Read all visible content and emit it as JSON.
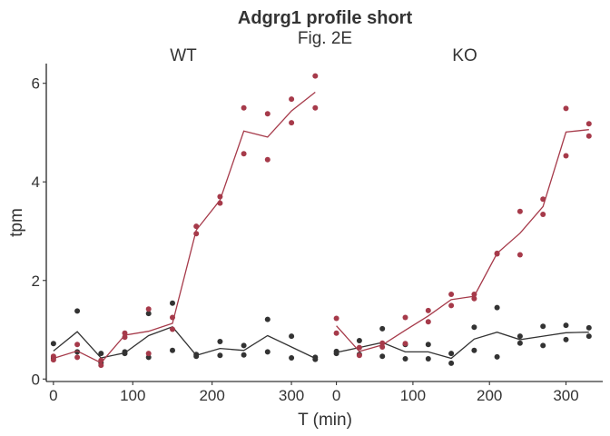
{
  "chart_data": {
    "type": "scatter",
    "title": "Adgrg1 profile short",
    "subtitle": "Fig. 2E",
    "xlabel": "T (min)",
    "ylabel": "tpm",
    "xlim": [
      -9,
      348
    ],
    "ylim": [
      -0.05,
      6.4
    ],
    "x_ticks": [
      0,
      100,
      200,
      300
    ],
    "y_ticks": [
      0,
      2,
      4,
      6
    ],
    "grid": false,
    "legend": "none",
    "colors": {
      "group_a": "#333333",
      "group_b": "#A63A4A"
    },
    "panels": [
      {
        "label": "WT",
        "series": [
          {
            "color": "#333333",
            "points": [
              [
                0,
                0.72
              ],
              [
                0,
                0.43
              ],
              [
                30,
                1.38
              ],
              [
                30,
                0.55
              ],
              [
                60,
                0.52
              ],
              [
                60,
                0.33
              ],
              [
                90,
                0.55
              ],
              [
                90,
                0.52
              ],
              [
                120,
                1.33
              ],
              [
                120,
                0.44
              ],
              [
                150,
                1.54
              ],
              [
                150,
                0.58
              ],
              [
                180,
                0.5
              ],
              [
                180,
                0.46
              ],
              [
                210,
                0.76
              ],
              [
                210,
                0.48
              ],
              [
                240,
                0.68
              ],
              [
                240,
                0.49
              ],
              [
                270,
                1.21
              ],
              [
                270,
                0.55
              ],
              [
                300,
                0.87
              ],
              [
                300,
                0.43
              ],
              [
                330,
                0.44
              ],
              [
                330,
                0.4
              ]
            ],
            "line": [
              [
                0,
                0.57
              ],
              [
                30,
                0.96
              ],
              [
                60,
                0.43
              ],
              [
                90,
                0.53
              ],
              [
                120,
                0.88
              ],
              [
                150,
                1.06
              ],
              [
                180,
                0.48
              ],
              [
                210,
                0.62
              ],
              [
                240,
                0.58
              ],
              [
                270,
                0.88
              ],
              [
                300,
                0.65
              ],
              [
                330,
                0.42
              ]
            ]
          },
          {
            "color": "#A63A4A",
            "points": [
              [
                0,
                0.46
              ],
              [
                0,
                0.39
              ],
              [
                30,
                0.7
              ],
              [
                30,
                0.44
              ],
              [
                60,
                0.38
              ],
              [
                60,
                0.28
              ],
              [
                90,
                0.93
              ],
              [
                90,
                0.85
              ],
              [
                120,
                1.42
              ],
              [
                120,
                0.52
              ],
              [
                150,
                1.25
              ],
              [
                150,
                1.01
              ],
              [
                180,
                3.1
              ],
              [
                180,
                2.95
              ],
              [
                210,
                3.7
              ],
              [
                210,
                3.57
              ],
              [
                240,
                5.5
              ],
              [
                240,
                4.57
              ],
              [
                270,
                5.38
              ],
              [
                270,
                4.45
              ],
              [
                300,
                5.68
              ],
              [
                300,
                5.2
              ],
              [
                330,
                6.15
              ],
              [
                330,
                5.5
              ]
            ],
            "line": [
              [
                0,
                0.42
              ],
              [
                30,
                0.57
              ],
              [
                60,
                0.33
              ],
              [
                90,
                0.89
              ],
              [
                120,
                0.97
              ],
              [
                150,
                1.13
              ],
              [
                180,
                3.02
              ],
              [
                210,
                3.63
              ],
              [
                240,
                5.03
              ],
              [
                270,
                4.91
              ],
              [
                300,
                5.44
              ],
              [
                330,
                5.82
              ]
            ]
          }
        ]
      },
      {
        "label": "KO",
        "series": [
          {
            "color": "#333333",
            "points": [
              [
                0,
                0.56
              ],
              [
                0,
                0.52
              ],
              [
                30,
                0.78
              ],
              [
                30,
                0.5
              ],
              [
                60,
                1.02
              ],
              [
                60,
                0.46
              ],
              [
                90,
                0.7
              ],
              [
                90,
                0.41
              ],
              [
                120,
                0.7
              ],
              [
                120,
                0.41
              ],
              [
                150,
                0.52
              ],
              [
                150,
                0.32
              ],
              [
                180,
                1.05
              ],
              [
                180,
                0.58
              ],
              [
                210,
                1.45
              ],
              [
                210,
                0.45
              ],
              [
                240,
                0.87
              ],
              [
                240,
                0.73
              ],
              [
                270,
                1.07
              ],
              [
                270,
                0.68
              ],
              [
                300,
                1.09
              ],
              [
                300,
                0.8
              ],
              [
                330,
                1.04
              ],
              [
                330,
                0.87
              ]
            ],
            "line": [
              [
                0,
                0.54
              ],
              [
                30,
                0.64
              ],
              [
                60,
                0.74
              ],
              [
                90,
                0.55
              ],
              [
                120,
                0.55
              ],
              [
                150,
                0.42
              ],
              [
                180,
                0.81
              ],
              [
                210,
                0.95
              ],
              [
                240,
                0.8
              ],
              [
                270,
                0.87
              ],
              [
                300,
                0.94
              ],
              [
                330,
                0.95
              ]
            ]
          },
          {
            "color": "#A63A4A",
            "points": [
              [
                0,
                1.23
              ],
              [
                0,
                0.93
              ],
              [
                30,
                0.64
              ],
              [
                30,
                0.48
              ],
              [
                60,
                0.73
              ],
              [
                60,
                0.65
              ],
              [
                90,
                1.25
              ],
              [
                90,
                0.72
              ],
              [
                120,
                1.39
              ],
              [
                120,
                1.16
              ],
              [
                150,
                1.72
              ],
              [
                150,
                1.49
              ],
              [
                180,
                1.72
              ],
              [
                180,
                1.63
              ],
              [
                210,
                2.55
              ],
              [
                210,
                2.54
              ],
              [
                240,
                3.4
              ],
              [
                240,
                2.52
              ],
              [
                270,
                3.65
              ],
              [
                270,
                3.34
              ],
              [
                300,
                5.49
              ],
              [
                300,
                4.53
              ],
              [
                330,
                5.18
              ],
              [
                330,
                4.93
              ]
            ],
            "line": [
              [
                0,
                1.08
              ],
              [
                30,
                0.56
              ],
              [
                60,
                0.69
              ],
              [
                90,
                0.99
              ],
              [
                120,
                1.28
              ],
              [
                150,
                1.61
              ],
              [
                180,
                1.68
              ],
              [
                210,
                2.55
              ],
              [
                240,
                2.96
              ],
              [
                270,
                3.5
              ],
              [
                300,
                5.01
              ],
              [
                330,
                5.06
              ]
            ]
          }
        ]
      }
    ]
  }
}
